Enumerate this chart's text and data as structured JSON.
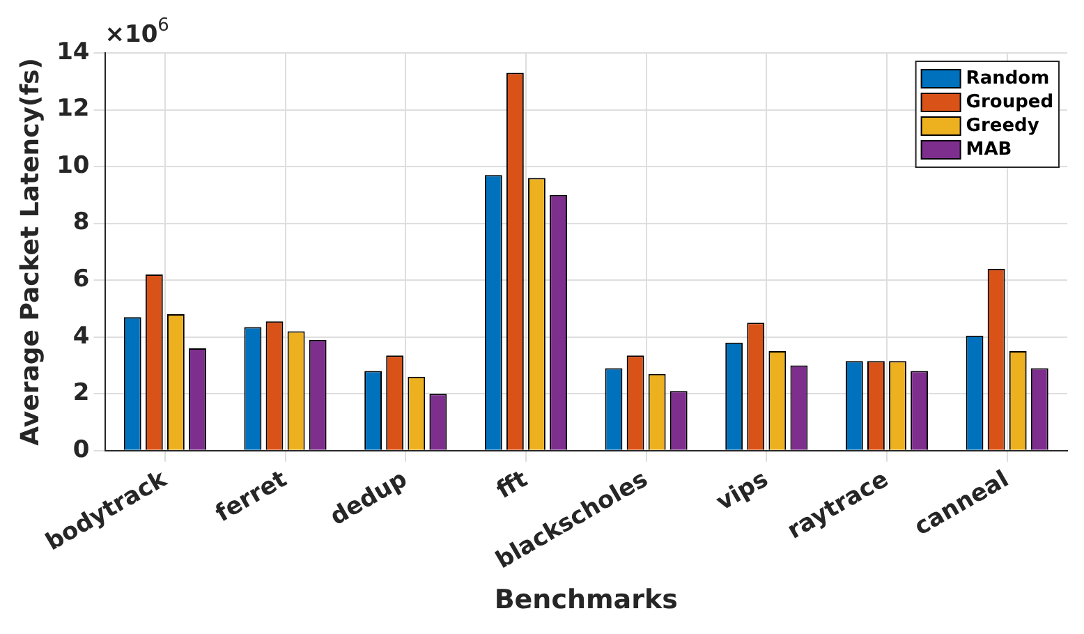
{
  "chart_data": {
    "type": "bar",
    "xlabel": "Benchmarks",
    "ylabel": "Average Packet Latency(fs)",
    "annotations": [
      "×10$^{6}$"
    ],
    "categories": [
      "bodytrack",
      "ferret",
      "dedup",
      "fft",
      "blackscholes",
      "vips",
      "raytrace",
      "canneal"
    ],
    "series": [
      {
        "name": "Random",
        "color": "#0072bd",
        "values": [
          4.7,
          4.35,
          2.8,
          9.7,
          2.9,
          3.8,
          3.15,
          4.05
        ]
      },
      {
        "name": "Grouped",
        "color": "#d95319",
        "values": [
          6.2,
          4.55,
          3.35,
          13.3,
          3.35,
          4.5,
          3.15,
          6.4
        ]
      },
      {
        "name": "Greedy",
        "color": "#edb120",
        "values": [
          4.8,
          4.2,
          2.6,
          9.6,
          2.7,
          3.5,
          3.15,
          3.5
        ]
      },
      {
        "name": "MAB",
        "color": "#7e2f8e",
        "values": [
          3.6,
          3.9,
          2.0,
          9.0,
          2.1,
          3.0,
          2.8,
          2.9
        ]
      }
    ],
    "ylim": [
      0,
      14
    ],
    "yticks": [
      0,
      2,
      4,
      6,
      8,
      10,
      12,
      14
    ],
    "grid": true,
    "legend": "top right"
  }
}
